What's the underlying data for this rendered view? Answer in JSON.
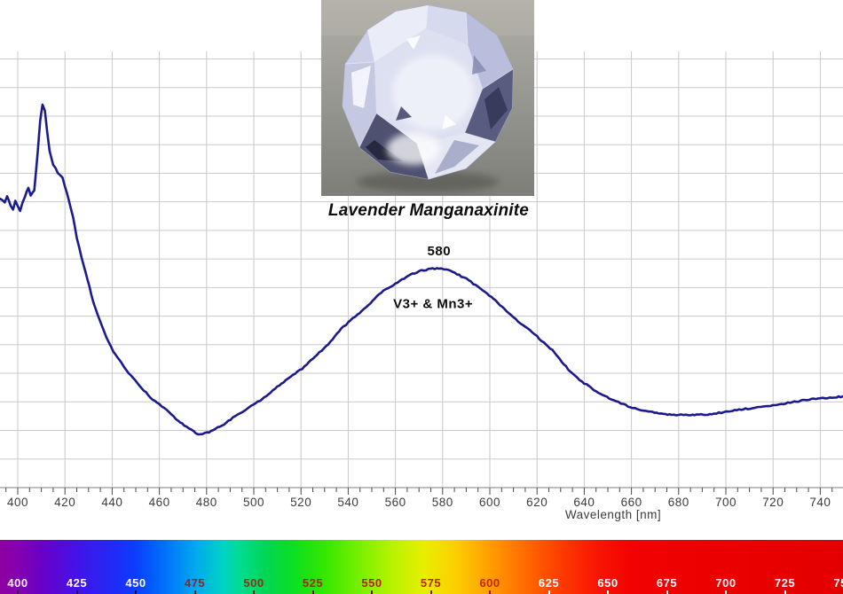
{
  "header": {
    "title": "Lavender Manganaxinite"
  },
  "photo": {
    "description": "faceted round lavender manganaxinite gemstone on a gray surface"
  },
  "chart_data": {
    "type": "line",
    "title": "Lavender Manganaxinite",
    "xlabel": "Wavelength [nm]",
    "ylabel": "",
    "xlim": [
      392,
      750
    ],
    "ylim": [
      0,
      1
    ],
    "grid": true,
    "x_ticks": [
      400,
      420,
      440,
      460,
      480,
      500,
      520,
      540,
      560,
      580,
      600,
      620,
      640,
      660,
      680,
      700,
      720,
      740
    ],
    "x_minor_tick_step_nm": 5,
    "line_color": "#1b1b8c",
    "annotations": [
      {
        "text": "580",
        "nm": 578.5,
        "value": 0.535
      },
      {
        "text": "V3+ & Mn3+",
        "nm": 576,
        "value": 0.415
      }
    ],
    "series": [
      {
        "name": "absorption spectrum",
        "points": [
          [
            392.5,
            0.663
          ],
          [
            394.5,
            0.657
          ],
          [
            395.5,
            0.669
          ],
          [
            397,
            0.648
          ],
          [
            398,
            0.64
          ],
          [
            399,
            0.661
          ],
          [
            401,
            0.636
          ],
          [
            402,
            0.655
          ],
          [
            403,
            0.669
          ],
          [
            404.5,
            0.689
          ],
          [
            405.5,
            0.671
          ],
          [
            407,
            0.683
          ],
          [
            408.5,
            0.774
          ],
          [
            409.5,
            0.844
          ],
          [
            410.5,
            0.879
          ],
          [
            411.5,
            0.865
          ],
          [
            412.5,
            0.814
          ],
          [
            413.5,
            0.774
          ],
          [
            415,
            0.743
          ],
          [
            417,
            0.723
          ],
          [
            419,
            0.713
          ],
          [
            420,
            0.693
          ],
          [
            421.5,
            0.663
          ],
          [
            423.5,
            0.622
          ],
          [
            425,
            0.576
          ],
          [
            427,
            0.531
          ],
          [
            429.5,
            0.481
          ],
          [
            432,
            0.43
          ],
          [
            434.5,
            0.39
          ],
          [
            437.5,
            0.349
          ],
          [
            440.5,
            0.317
          ],
          [
            444,
            0.289
          ],
          [
            448,
            0.261
          ],
          [
            452.5,
            0.232
          ],
          [
            457,
            0.208
          ],
          [
            462,
            0.188
          ],
          [
            467,
            0.162
          ],
          [
            471.5,
            0.145
          ],
          [
            476.5,
            0.127
          ],
          [
            481,
            0.133
          ],
          [
            486.5,
            0.147
          ],
          [
            492,
            0.168
          ],
          [
            498,
            0.188
          ],
          [
            503.5,
            0.208
          ],
          [
            509,
            0.232
          ],
          [
            514.5,
            0.255
          ],
          [
            520.5,
            0.277
          ],
          [
            526,
            0.305
          ],
          [
            531.5,
            0.333
          ],
          [
            537,
            0.368
          ],
          [
            543,
            0.396
          ],
          [
            548.5,
            0.422
          ],
          [
            554,
            0.451
          ],
          [
            560,
            0.471
          ],
          [
            565.5,
            0.489
          ],
          [
            570,
            0.499
          ],
          [
            574,
            0.504
          ],
          [
            577.5,
            0.505
          ],
          [
            581.5,
            0.503
          ],
          [
            586,
            0.493
          ],
          [
            591,
            0.479
          ],
          [
            596,
            0.459
          ],
          [
            601.5,
            0.436
          ],
          [
            607,
            0.41
          ],
          [
            612,
            0.384
          ],
          [
            617,
            0.364
          ],
          [
            622,
            0.341
          ],
          [
            626.5,
            0.319
          ],
          [
            630.5,
            0.293
          ],
          [
            635,
            0.265
          ],
          [
            640,
            0.244
          ],
          [
            645,
            0.226
          ],
          [
            650.5,
            0.21
          ],
          [
            655.5,
            0.198
          ],
          [
            661.5,
            0.186
          ],
          [
            667,
            0.18
          ],
          [
            672.5,
            0.174
          ],
          [
            678,
            0.172
          ],
          [
            684,
            0.171
          ],
          [
            689.5,
            0.172
          ],
          [
            695,
            0.174
          ],
          [
            701,
            0.18
          ],
          [
            706.5,
            0.184
          ],
          [
            712,
            0.188
          ],
          [
            718,
            0.192
          ],
          [
            723.5,
            0.196
          ],
          [
            729,
            0.202
          ],
          [
            734.5,
            0.206
          ],
          [
            740,
            0.21
          ],
          [
            746,
            0.212
          ],
          [
            749.5,
            0.214
          ]
        ]
      }
    ]
  },
  "spectrum_bar": {
    "labels": [
      {
        "nm": 400,
        "text": "400",
        "color": "#ffffff",
        "tick": "#1a1a55"
      },
      {
        "nm": 425,
        "text": "425",
        "color": "#ffffff",
        "tick": "#1a1a55"
      },
      {
        "nm": 450,
        "text": "450",
        "color": "#ffffff",
        "tick": "#101040"
      },
      {
        "nm": 475,
        "text": "475",
        "color": "#8e2426",
        "tick": "#6e1a14"
      },
      {
        "nm": 500,
        "text": "500",
        "color": "#9e2712",
        "tick": "#6e1a14"
      },
      {
        "nm": 525,
        "text": "525",
        "color": "#a62708",
        "tick": "#6e1a14"
      },
      {
        "nm": 550,
        "text": "550",
        "color": "#ae2506",
        "tick": "#6e1a14"
      },
      {
        "nm": 575,
        "text": "575",
        "color": "#b62404",
        "tick": "#6e1a14"
      },
      {
        "nm": 600,
        "text": "600",
        "color": "#c42102",
        "tick": "#8e1a08"
      },
      {
        "nm": 625,
        "text": "625",
        "color": "#ffffff",
        "tick": "#ffffff"
      },
      {
        "nm": 650,
        "text": "650",
        "color": "#ffffff",
        "tick": "#ffffff"
      },
      {
        "nm": 675,
        "text": "675",
        "color": "#ffffff",
        "tick": "#ffffff"
      },
      {
        "nm": 700,
        "text": "700",
        "color": "#ffffff",
        "tick": "#ffffff"
      },
      {
        "nm": 725,
        "text": "725",
        "color": "#ffffff",
        "tick": "#ffffff"
      },
      {
        "nm": 750,
        "text": "750",
        "color": "#ffffff",
        "tick": "#ffffff"
      }
    ],
    "gradient": [
      {
        "nm": 392,
        "color": "#8e00a0"
      },
      {
        "nm": 400,
        "color": "#8500ae"
      },
      {
        "nm": 410,
        "color": "#6a00c8"
      },
      {
        "nm": 425,
        "color": "#4313e9"
      },
      {
        "nm": 440,
        "color": "#2229f6"
      },
      {
        "nm": 450,
        "color": "#0b3eff"
      },
      {
        "nm": 462,
        "color": "#0070fa"
      },
      {
        "nm": 475,
        "color": "#00a8ee"
      },
      {
        "nm": 487,
        "color": "#00d4c4"
      },
      {
        "nm": 495,
        "color": "#00dc8c"
      },
      {
        "nm": 505,
        "color": "#00d653"
      },
      {
        "nm": 518,
        "color": "#0ee01c"
      },
      {
        "nm": 530,
        "color": "#35e700"
      },
      {
        "nm": 545,
        "color": "#79ef00"
      },
      {
        "nm": 558,
        "color": "#b4f300"
      },
      {
        "nm": 572,
        "color": "#e8ee00"
      },
      {
        "nm": 585,
        "color": "#fbd000"
      },
      {
        "nm": 600,
        "color": "#ff9e00"
      },
      {
        "nm": 615,
        "color": "#ff6a00"
      },
      {
        "nm": 630,
        "color": "#fe3c00"
      },
      {
        "nm": 645,
        "color": "#f81603"
      },
      {
        "nm": 660,
        "color": "#f20202"
      },
      {
        "nm": 700,
        "color": "#ea0000"
      },
      {
        "nm": 750,
        "color": "#e30000"
      }
    ]
  }
}
